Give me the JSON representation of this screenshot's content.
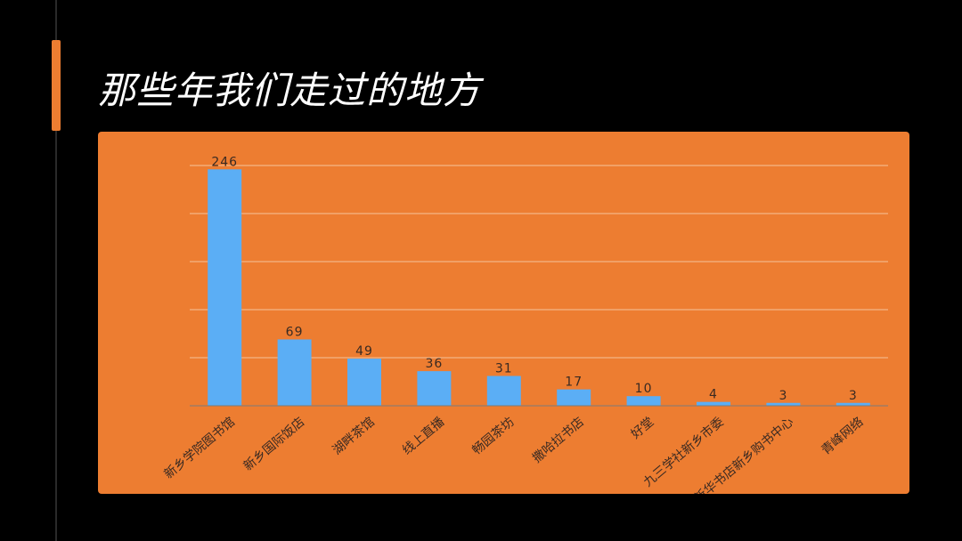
{
  "page": {
    "title": "那些年我们走过的地方"
  },
  "colors": {
    "background": "#000000",
    "accent": "#ED7D31",
    "panel": "#ED7D31",
    "bar": "#5BAEF5",
    "gridline": "#F5C39A",
    "baseline": "#7a7a7a",
    "text": "#3a2a22",
    "title": "#ffffff"
  },
  "chart_data": {
    "type": "bar",
    "title": "",
    "xlabel": "",
    "ylabel": "",
    "categories": [
      "新乡学院图书馆",
      "新乡国际饭店",
      "湖畔茶馆",
      "线上直播",
      "畅园茶坊",
      "撒哈拉书店",
      "好堂",
      "九三学社新乡市委",
      "新华书店新乡购书中心",
      "青峰网络"
    ],
    "values": [
      246,
      69,
      49,
      36,
      31,
      17,
      10,
      4,
      3,
      3
    ],
    "ylim": [
      0,
      250
    ],
    "grid": true,
    "legend": "none",
    "data_labels": true
  }
}
